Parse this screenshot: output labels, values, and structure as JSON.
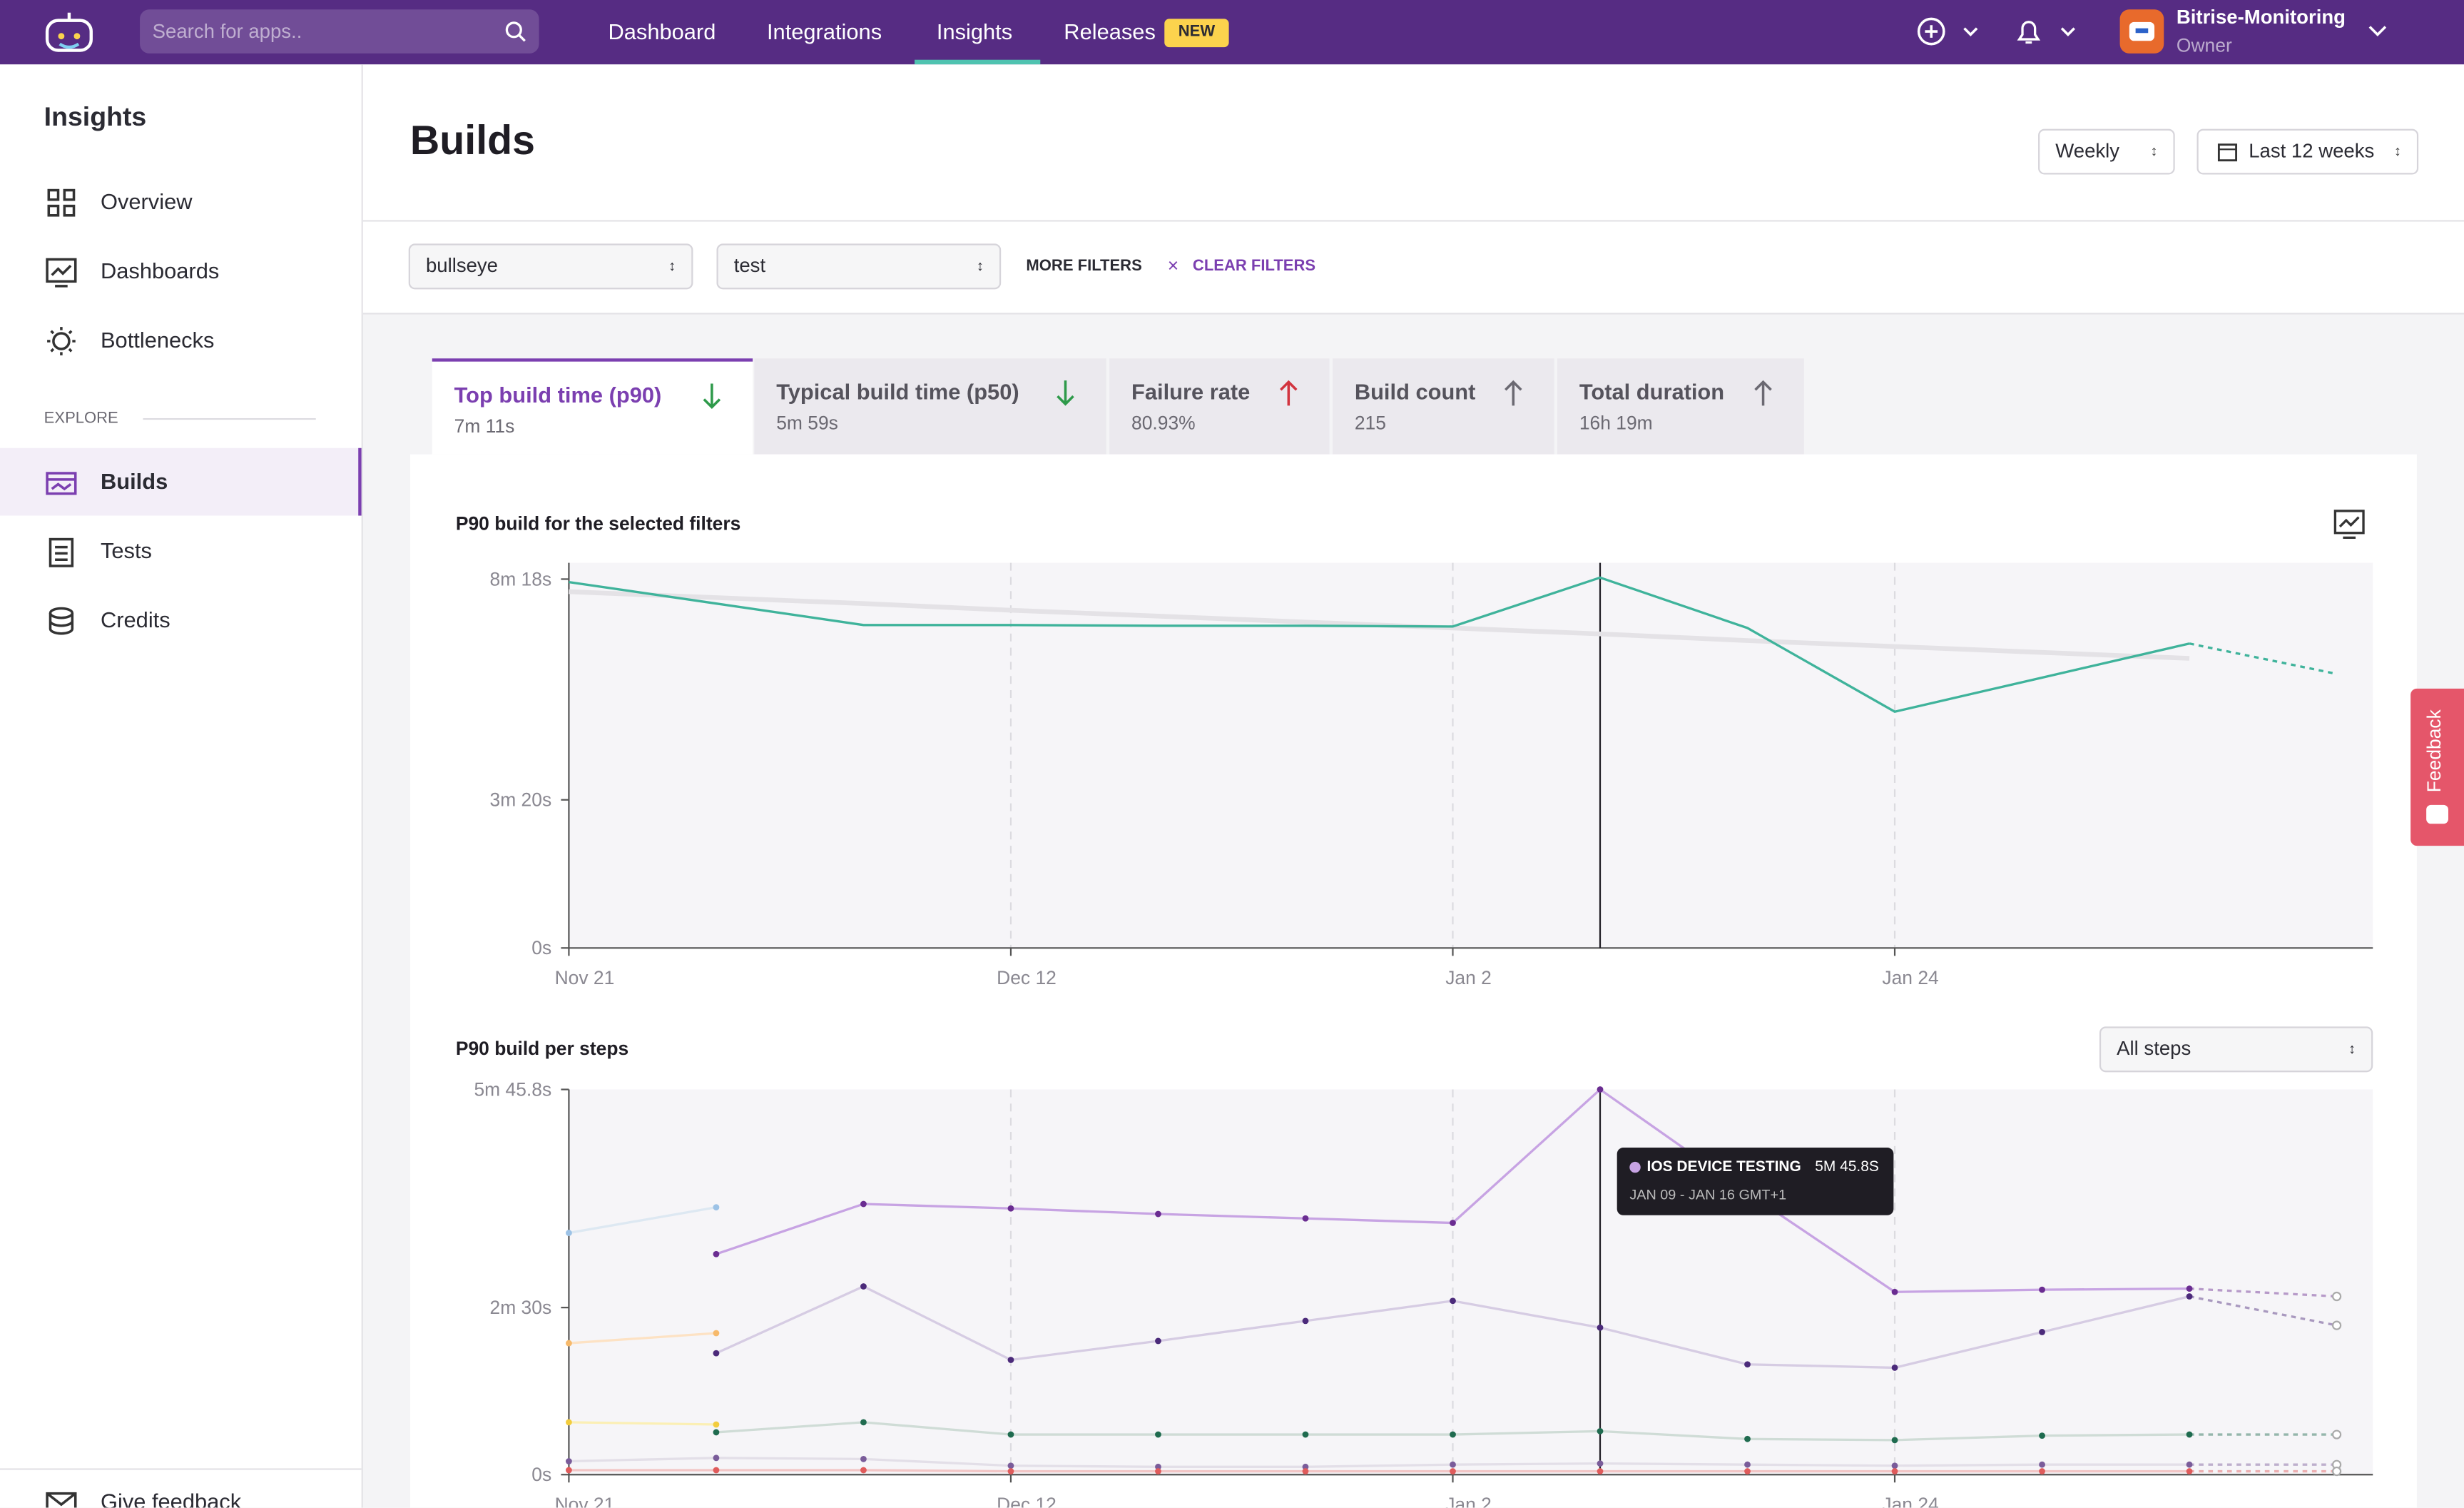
{
  "nav": {
    "search_placeholder": "Search for apps..",
    "items": [
      "Dashboard",
      "Integrations",
      "Insights",
      "Releases"
    ],
    "badge": "NEW",
    "org": "Bitrise-Monitoring",
    "role": "Owner"
  },
  "sidebar": {
    "title": "Insights",
    "items": [
      "Overview",
      "Dashboards",
      "Bottlenecks"
    ],
    "section": "EXPLORE",
    "explore_items": [
      "Builds",
      "Tests",
      "Credits"
    ],
    "footer": "Give feedback"
  },
  "header": {
    "title": "Builds",
    "period": "Weekly",
    "range": "Last 12 weeks"
  },
  "filters": {
    "selects": [
      "bullseye",
      "test"
    ],
    "more": "MORE FILTERS",
    "clear": "CLEAR FILTERS"
  },
  "tabs": [
    {
      "label": "Top build time (p90)",
      "value": "7m 11s",
      "arrow": "down",
      "arrow_color": "#2e9a4a"
    },
    {
      "label": "Typical build time (p50)",
      "value": "5m 59s",
      "arrow": "down",
      "arrow_color": "#2e9a4a"
    },
    {
      "label": "Failure rate",
      "value": "80.93%",
      "arrow": "up",
      "arrow_color": "#d2343f"
    },
    {
      "label": "Build count",
      "value": "215",
      "arrow": "up",
      "arrow_color": "#6b6972"
    },
    {
      "label": "Total duration",
      "value": "16h 19m",
      "arrow": "up",
      "arrow_color": "#6b6972"
    }
  ],
  "feedback": "Feedback",
  "chart_data": [
    {
      "type": "line",
      "title": "P90 build for the selected filters",
      "categories": [
        "Nov 21",
        null,
        null,
        "Dec 12",
        null,
        null,
        "Jan 2",
        null,
        null,
        "Jan 24",
        null,
        null,
        null
      ],
      "series": [
        {
          "color": "#e4e2e6",
          "width": 3,
          "values": [
            481,
            473,
            465,
            456,
            448,
            440,
            432,
            424,
            415,
            407,
            399,
            391,
            null
          ]
        },
        {
          "color": "#3fb39b",
          "width": 1.5,
          "values": [
            494,
            465,
            436,
            436,
            435,
            435,
            434,
            500,
            432,
            319,
            365,
            411,
            370
          ]
        }
      ],
      "ylim": [
        0,
        520
      ],
      "yticks": [
        {
          "value": 0,
          "label": "0s"
        },
        {
          "value": 200,
          "label": "3m 20s"
        },
        {
          "value": 498,
          "label": "8m 18s"
        }
      ],
      "grid": true,
      "dashed_last_segment": true,
      "cursor_index": 7,
      "markers": false
    },
    {
      "type": "line",
      "title": "P90 build per steps",
      "steps_select": "All steps",
      "categories": [
        "Nov 21",
        null,
        null,
        "Dec 12",
        null,
        null,
        "Jan 2",
        null,
        null,
        "Jan 24",
        null,
        null,
        null
      ],
      "series": [
        {
          "name": "IOS DEVICE TESTING",
          "color": "#c7a3e3",
          "dot_color": "#6a2c91",
          "width": 1.5,
          "values": [
            null,
            198,
            243,
            239,
            234,
            230,
            226,
            345.8,
            253,
            164,
            166,
            167,
            160
          ]
        },
        {
          "color": "#d6cce3",
          "dot_color": "#4b2a7a",
          "width": 1.5,
          "values": [
            null,
            109,
            169,
            103,
            120,
            138,
            156,
            132,
            99,
            96,
            128,
            160,
            134
          ]
        },
        {
          "color": "#cfdcd6",
          "dot_color": "#1f6b4f",
          "width": 1.5,
          "values": [
            null,
            38,
            47,
            36,
            36,
            36,
            36,
            39,
            32,
            31,
            35,
            36,
            36
          ]
        },
        {
          "color": "#dde8f2",
          "dot_color": "#9cc2e6",
          "width": 1.5,
          "values": [
            217,
            240,
            null,
            null,
            null,
            null,
            null,
            null,
            null,
            null,
            null,
            null,
            null
          ]
        },
        {
          "color": "#fde2c4",
          "dot_color": "#f6b96b",
          "width": 1.5,
          "values": [
            118,
            127,
            null,
            null,
            null,
            null,
            null,
            null,
            null,
            null,
            null,
            null,
            null
          ]
        },
        {
          "color": "#fbefb5",
          "dot_color": "#f2cc3d",
          "width": 1.5,
          "values": [
            47,
            45,
            null,
            null,
            null,
            null,
            null,
            null,
            null,
            null,
            null,
            null,
            null
          ]
        },
        {
          "color": "#e3dfe8",
          "dot_color": "#7a5c9a",
          "width": 1.5,
          "values": [
            12,
            15,
            14,
            8,
            7,
            7,
            9,
            10,
            9,
            8,
            9,
            9,
            9
          ]
        },
        {
          "color": "#f2c6c6",
          "dot_color": "#e05b5b",
          "width": 1.5,
          "values": [
            4,
            4,
            4,
            3,
            3,
            3,
            3,
            3,
            3,
            3,
            3,
            3,
            3
          ]
        }
      ],
      "ylim": [
        0,
        345.8
      ],
      "yticks": [
        {
          "value": 0,
          "label": "0s"
        },
        {
          "value": 150,
          "label": "2m 30s"
        },
        {
          "value": 345.8,
          "label": "5m 45.8s"
        }
      ],
      "grid": true,
      "dashed_last_segment": true,
      "cursor_index": 7,
      "markers": true,
      "tooltip": {
        "value_label": "5M 45.8S",
        "range": "JAN 09 - JAN 16 GMT+1"
      }
    }
  ]
}
